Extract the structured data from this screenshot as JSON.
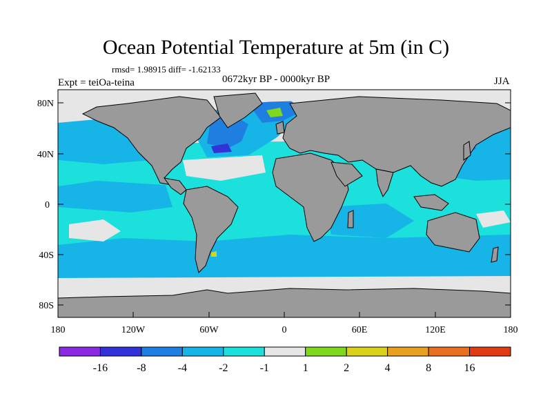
{
  "title": "Ocean Potential Temperature at 5m (in C)",
  "stats": "rmsd= 1.98915 diff= -1.62133",
  "experiment": "Expt = teiOa-teina",
  "period": "0672kyr BP - 0000kyr BP",
  "season": "JJA",
  "lat_ticks": [
    "80N",
    "40N",
    "0",
    "40S",
    "80S"
  ],
  "lon_ticks": [
    "180",
    "120W",
    "60W",
    "0",
    "60E",
    "120E",
    "180"
  ],
  "colorbar": {
    "colors": [
      "#8a2be2",
      "#3232d8",
      "#1e7fe0",
      "#17b4e8",
      "#1ce0dc",
      "#e6e6e6",
      "#7fd81e",
      "#d8d21a",
      "#e8a020",
      "#e8701e",
      "#e03c14"
    ],
    "labels": [
      "-16",
      "-8",
      "-4",
      "-2",
      "-1",
      "1",
      "2",
      "4",
      "8",
      "16"
    ]
  },
  "colors": {
    "land": "#9a9a9a",
    "ocean_base": "#e6e6e6"
  }
}
